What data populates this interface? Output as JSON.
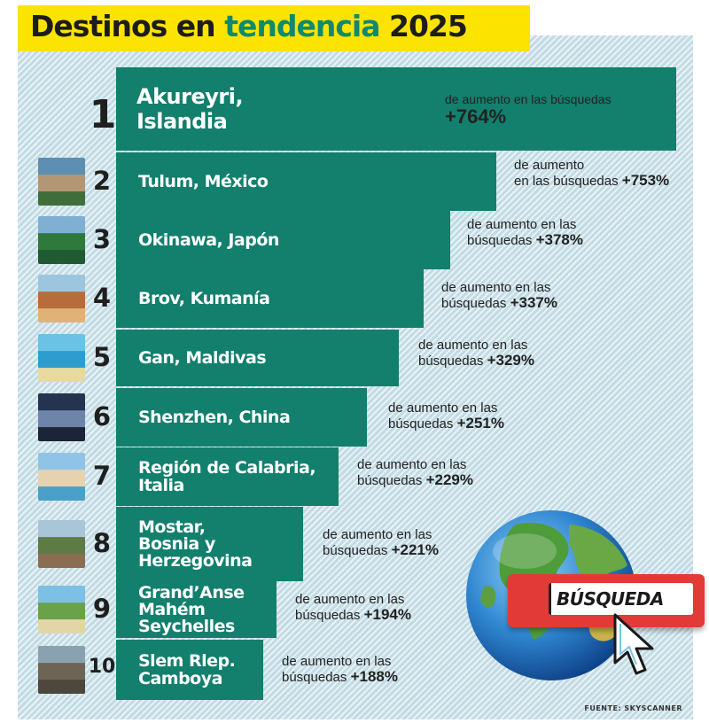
{
  "header": {
    "title_part1": "Destinos en",
    "title_accent": "tendencia",
    "title_part2": "2025"
  },
  "colors": {
    "bar": "#137f6d",
    "accent": "#0d8a70",
    "title_bg": "#fce300",
    "panel_bg": "#cfe3ea"
  },
  "chart_data": {
    "type": "bar",
    "orientation": "horizontal",
    "title": "Destinos en tendencia 2025",
    "metric": "aumento en las búsquedas (%)",
    "categories": [
      "Akureyri, Islandia",
      "Tulum, México",
      "Okinawa, Japón",
      "Brov, Kumanía",
      "Gan, Maldivas",
      "Shenzhen, China",
      "Región de Calabria, Italia",
      "Mostar, Bosnia y Herzegovina",
      "Grand’Anse Mahém Seychelles",
      "Slem Rlep. Camboya"
    ],
    "values": [
      764,
      753,
      378,
      337,
      329,
      251,
      229,
      221,
      194,
      188
    ],
    "items": [
      {
        "rank": "1",
        "name_lines": [
          "Akureyri,",
          "Islandia"
        ],
        "label_lines": [
          "de aumento en las búsquedas"
        ],
        "value_text": "+764%",
        "value": 764
      },
      {
        "rank": "2",
        "name_lines": [
          "Tulum, México"
        ],
        "label_lines": [
          "de aumento",
          "en las búsquedas"
        ],
        "value_text": "+753%",
        "value": 753
      },
      {
        "rank": "3",
        "name_lines": [
          "Okinawa, Japón"
        ],
        "label_lines": [
          "de aumento en las",
          "búsquedas"
        ],
        "value_text": "+378%",
        "value": 378
      },
      {
        "rank": "4",
        "name_lines": [
          "Brov, Kumanía"
        ],
        "label_lines": [
          "de aumento en las",
          "búsquedas"
        ],
        "value_text": "+337%",
        "value": 337
      },
      {
        "rank": "5",
        "name_lines": [
          "Gan, Maldivas"
        ],
        "label_lines": [
          "de aumento en las",
          "búsquedas"
        ],
        "value_text": "+329%",
        "value": 329
      },
      {
        "rank": "6",
        "name_lines": [
          "Shenzhen, China"
        ],
        "label_lines": [
          "de aumento en las",
          "búsquedas"
        ],
        "value_text": "+251%",
        "value": 251
      },
      {
        "rank": "7",
        "name_lines": [
          "Región de Calabria,",
          "Italia"
        ],
        "label_lines": [
          "de aumento en las",
          "búsquedas"
        ],
        "value_text": "+229%",
        "value": 229
      },
      {
        "rank": "8",
        "name_lines": [
          "Mostar,",
          "Bosnia y",
          "Herzegovina"
        ],
        "label_lines": [
          "de aumento en las",
          "búsquedas"
        ],
        "value_text": "+221%",
        "value": 221
      },
      {
        "rank": "9",
        "name_lines": [
          "Grand’Anse",
          "Mahém",
          "Seychelles"
        ],
        "label_lines": [
          "de aumento en las",
          "búsquedas"
        ],
        "value_text": "+194%",
        "value": 194
      },
      {
        "rank": "10",
        "name_lines": [
          "Slem Rlep.",
          "Camboya"
        ],
        "label_lines": [
          "de aumento en las",
          "búsquedas"
        ],
        "value_text": "+188%",
        "value": 188
      }
    ]
  },
  "busqueda_label": "BÚSQUEDA",
  "source": "FUENTE: SKYSCANNER"
}
